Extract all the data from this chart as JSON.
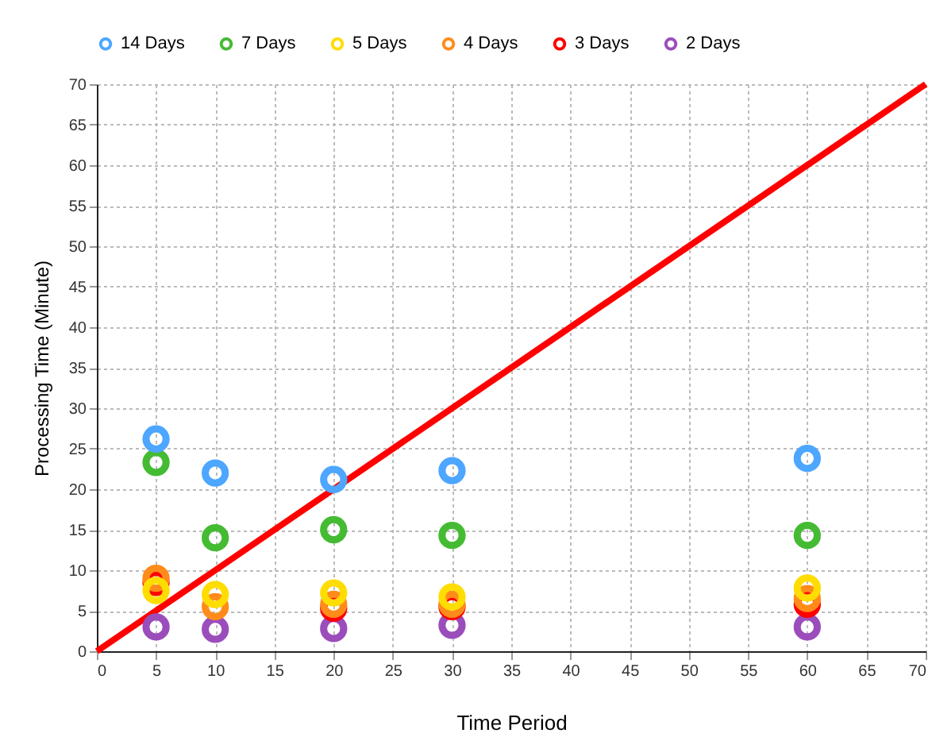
{
  "chart_data": {
    "type": "scatter",
    "xlabel": "Time Period",
    "ylabel": "Processing Time (Minute)",
    "x": [
      5,
      10,
      20,
      30,
      60
    ],
    "series": [
      {
        "name": "14 Days",
        "color": "#4da6ff",
        "values": [
          26.2,
          22,
          21.2,
          22.3,
          23.8
        ]
      },
      {
        "name": "7 Days",
        "color": "#44bb33",
        "values": [
          23.3,
          14,
          15,
          14.3,
          14.3
        ]
      },
      {
        "name": "5 Days",
        "color": "#ffdd00",
        "values": [
          7.5,
          7,
          7.2,
          6.7,
          7.8
        ]
      },
      {
        "name": "4 Days",
        "color": "#ff8c1a",
        "values": [
          9,
          5.5,
          5.8,
          5.8,
          6.5
        ]
      },
      {
        "name": "3 Days",
        "color": "#ff0000",
        "values": [
          8.5,
          null,
          5.3,
          5.5,
          5.8
        ]
      },
      {
        "name": "2 Days",
        "color": "#9b4dbb",
        "values": [
          3,
          2.7,
          2.8,
          3.2,
          3
        ]
      },
      {
        "type": "line",
        "color": "#ff0000",
        "marker": "none",
        "x": [
          0,
          70
        ],
        "values": [
          0,
          70
        ]
      }
    ],
    "xlim": [
      0,
      70
    ],
    "xticks": [
      0,
      5,
      10,
      15,
      20,
      25,
      30,
      35,
      40,
      45,
      50,
      55,
      60,
      65,
      70
    ],
    "ylim": [
      0,
      70
    ],
    "yticks": [
      0,
      5,
      10,
      15,
      20,
      25,
      30,
      35,
      40,
      45,
      50,
      55,
      60,
      65,
      70
    ],
    "grid": true,
    "legend": "top",
    "marker": "circle",
    "line_style": "solid"
  }
}
